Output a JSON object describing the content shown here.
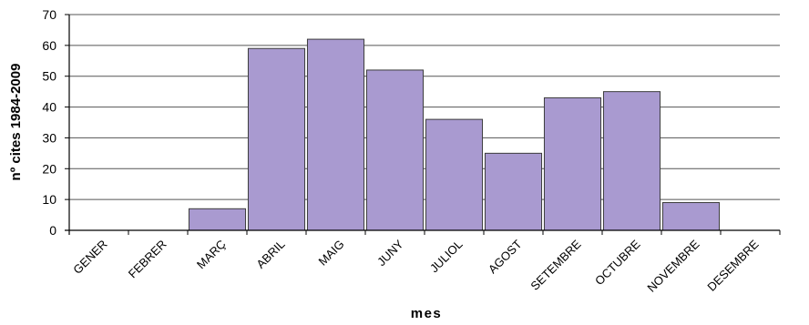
{
  "chart_data": {
    "type": "bar",
    "title": "",
    "xlabel": "mes",
    "ylabel": "nº cites 1984-2009",
    "categories": [
      "GENER",
      "FEBRER",
      "MARÇ",
      "ABRIL",
      "MAIG",
      "JUNY",
      "JULIOL",
      "AGOST",
      "SETEMBRE",
      "OCTUBRE",
      "NOVEMBRE",
      "DESEMBRE"
    ],
    "values": [
      0,
      0,
      7,
      59,
      62,
      52,
      36,
      25,
      43,
      45,
      9,
      0
    ],
    "ylim": [
      0,
      70
    ],
    "yticks": [
      "0",
      "10",
      "20",
      "30",
      "40",
      "50",
      "60",
      "70"
    ],
    "grid": true,
    "legend": "none",
    "colors": {
      "bar_fill": "#a99ad0",
      "bar_stroke": "#3c3c3c",
      "grid": "#555555",
      "axis": "#000000"
    }
  }
}
